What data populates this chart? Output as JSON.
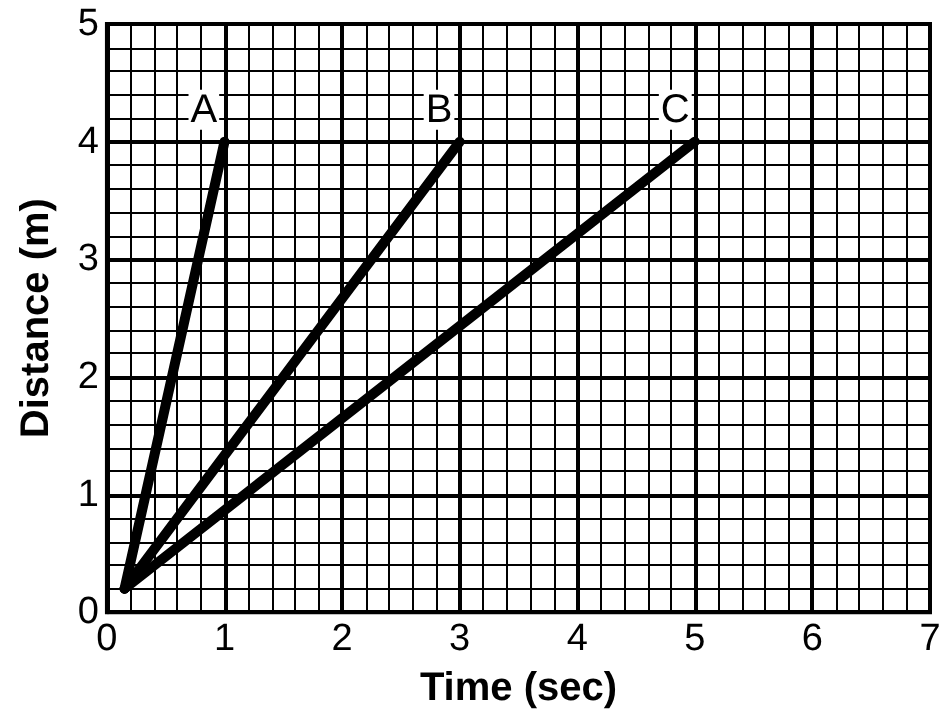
{
  "chart_data": {
    "type": "line",
    "xlabel": "Time (sec)",
    "ylabel": "Distance (m)",
    "xlim": [
      0,
      7
    ],
    "xticks": [
      0,
      1,
      2,
      3,
      4,
      5,
      6,
      7
    ],
    "ylim": [
      0,
      5
    ],
    "yticks": [
      0,
      1,
      2,
      3,
      4,
      5
    ],
    "grid": true,
    "marker": "none",
    "line_style": "solid",
    "series": [
      {
        "name": "A",
        "color": "#000000",
        "x": [
          0.15,
          1
        ],
        "values": [
          0.2,
          4
        ]
      },
      {
        "name": "B",
        "color": "#000000",
        "x": [
          0.15,
          3
        ],
        "values": [
          0.2,
          4
        ]
      },
      {
        "name": "C",
        "color": "#000000",
        "x": [
          0.15,
          5
        ],
        "values": [
          0.2,
          4
        ]
      }
    ]
  }
}
